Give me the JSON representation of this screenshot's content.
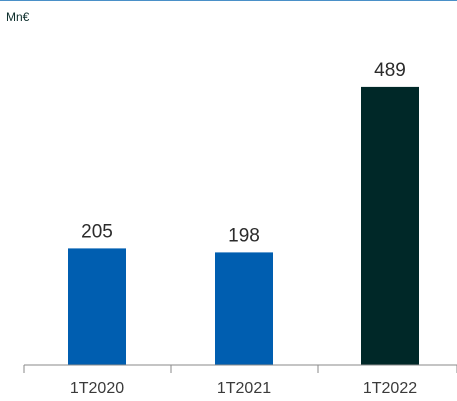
{
  "chart_data": {
    "type": "bar",
    "unit": "Mn€",
    "categories": [
      "1T2020",
      "1T2021",
      "1T2022"
    ],
    "values": [
      205,
      198,
      489
    ],
    "colors": [
      "#005eb0",
      "#005eb0",
      "#002828"
    ],
    "ylim": [
      0,
      545
    ],
    "grid": false,
    "legend": "none"
  },
  "colors": {
    "axis": "#8a8a8a",
    "top_rule": "#4a90c8"
  }
}
